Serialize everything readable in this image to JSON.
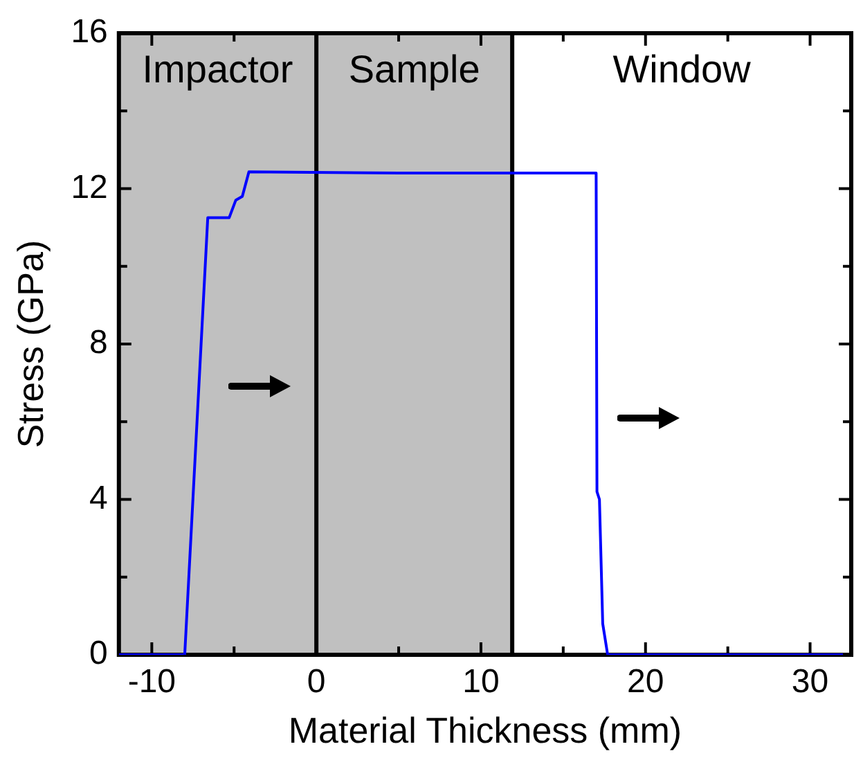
{
  "chart_data": {
    "type": "line",
    "xlabel": "Material Thickness (mm)",
    "ylabel": "Stress (GPa)",
    "xlim": [
      -12,
      32.5
    ],
    "ylim": [
      0,
      16
    ],
    "xticks": [
      -10,
      {
        "value": -5,
        "label": null
      },
      0,
      {
        "value": 5,
        "label": null
      },
      10,
      {
        "value": 15,
        "label": null
      },
      20,
      {
        "value": 25,
        "label": null
      },
      30
    ],
    "yticks": [
      0,
      {
        "value": 2,
        "label": null
      },
      4,
      {
        "value": 6,
        "label": null
      },
      8,
      {
        "value": 10,
        "label": null
      },
      12,
      {
        "value": 14,
        "label": null
      },
      16
    ],
    "series": [
      {
        "color": "#0000ff",
        "x": [
          -12,
          -8,
          -6.6,
          -5.3,
          -4.9,
          -4.5,
          -4.1,
          5,
          17,
          17.05,
          17.2,
          17.4,
          17.7,
          32
        ],
        "values": [
          0,
          0,
          11.25,
          11.25,
          11.7,
          11.8,
          12.43,
          12.4,
          12.4,
          4.2,
          4.0,
          0.8,
          0,
          0
        ]
      }
    ],
    "bands": [
      {
        "axis": "x",
        "from": -12,
        "to": 0,
        "label": "Impactor",
        "color": "#c0c0c0"
      },
      {
        "axis": "x",
        "from": 0,
        "to": 11.9,
        "label": "Sample",
        "color": "#c0c0c0"
      }
    ],
    "annotations": [
      "Window"
    ],
    "ref_lines": [
      {
        "axis": "x",
        "value": 0,
        "color": "#000000"
      },
      {
        "axis": "x",
        "value": 11.9,
        "color": "#000000"
      }
    ],
    "legend": false,
    "marker": "none",
    "line_style": "solid"
  }
}
